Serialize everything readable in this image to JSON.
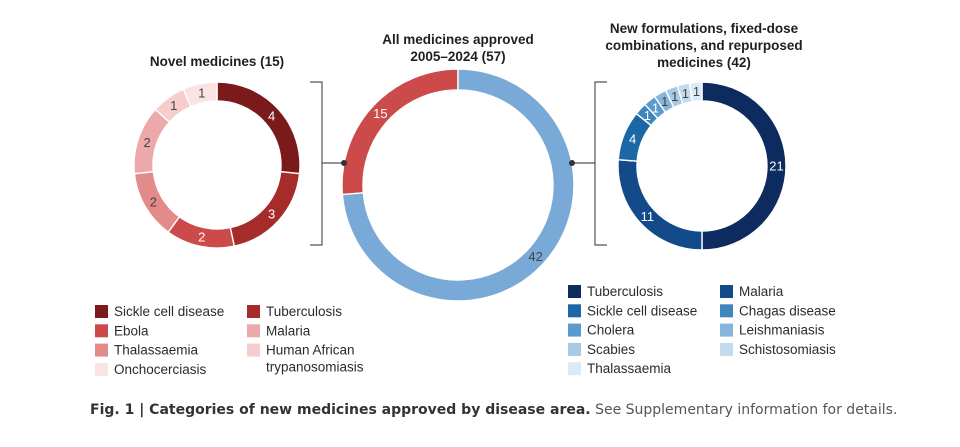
{
  "chart_data": [
    {
      "type": "pie",
      "title": "Novel medicines (15)",
      "categories": [
        "Sickle cell disease",
        "Tuberculosis",
        "Ebola",
        "Thalassaemia",
        "Malaria",
        "Human African trypanosomiasis",
        "Onchocerciasis"
      ],
      "values": [
        4,
        3,
        2,
        2,
        2,
        1,
        1
      ],
      "colors": [
        "#7a1a1a",
        "#a62b2b",
        "#cc4a4a",
        "#e38a8a",
        "#eda9a9",
        "#f5cdcd",
        "#fae3e3"
      ]
    },
    {
      "type": "pie",
      "title": "All medicines approved 2005–2024 (57)",
      "categories": [
        "Novel medicines",
        "New formulations, fixed-dose combinations, and repurposed medicines"
      ],
      "values": [
        15,
        42
      ],
      "colors": [
        "#cc4a4a",
        "#79a9d6"
      ]
    },
    {
      "type": "pie",
      "title": "New formulations, fixed-dose combinations, and repurposed medicines (42)",
      "categories": [
        "Tuberculosis",
        "Malaria",
        "Sickle cell disease",
        "Chagas disease",
        "Cholera",
        "Leishmaniasis",
        "Scabies",
        "Schistosomiasis",
        "Thalassaemia"
      ],
      "values": [
        21,
        11,
        4,
        1,
        1,
        1,
        1,
        1,
        1
      ],
      "colors": [
        "#0d2b5e",
        "#134b8a",
        "#1c68a6",
        "#3f86bf",
        "#5a9bcf",
        "#86b5db",
        "#a6c9e6",
        "#c3dbef",
        "#dceaf6"
      ]
    }
  ],
  "legends": {
    "left": [
      "Sickle cell disease",
      "Tuberculosis",
      "Ebola",
      "Malaria",
      "Thalassaemia",
      "Human African trypanosomiasis",
      "Onchocerciasis"
    ],
    "right": [
      "Tuberculosis",
      "Malaria",
      "Sickle cell disease",
      "Chagas disease",
      "Cholera",
      "Leishmaniasis",
      "Scabies",
      "Schistosomiasis",
      "Thalassaemia"
    ]
  },
  "caption": {
    "bold": "Fig. 1 | Categories of new medicines approved by disease area.",
    "text": " See Supplementary information for details."
  }
}
